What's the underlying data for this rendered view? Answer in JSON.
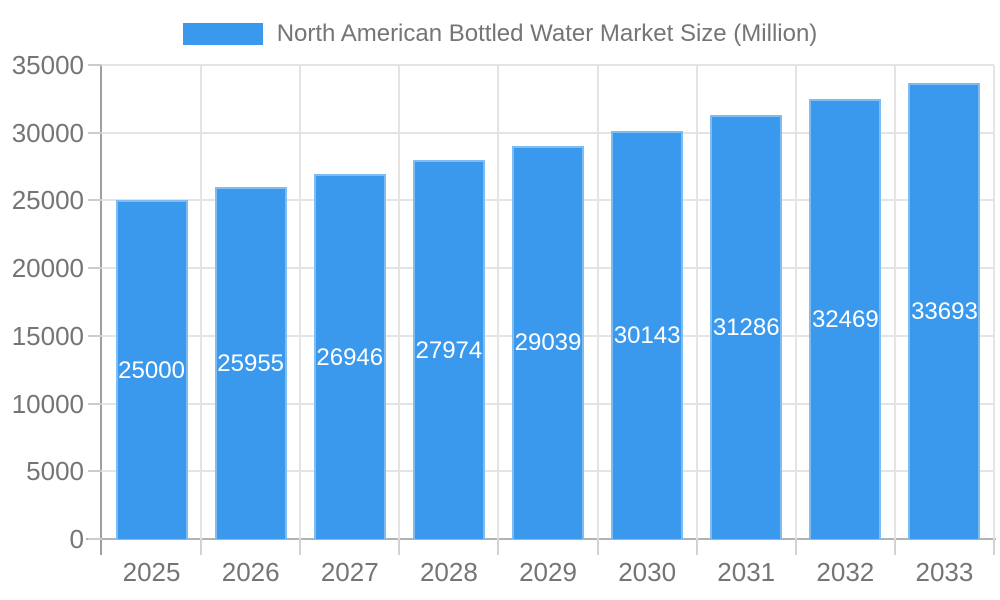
{
  "legend": {
    "items": [
      {
        "label": "North American Bottled Water Market Size (Million)",
        "color": "#3a99ec"
      }
    ],
    "position": "top"
  },
  "chart_data": {
    "type": "bar",
    "title": "North American Bottled Water Market Size (Million)",
    "categories": [
      "2025",
      "2026",
      "2027",
      "2028",
      "2029",
      "2030",
      "2031",
      "2032",
      "2033"
    ],
    "series": [
      {
        "name": "North American Bottled Water Market Size (Million)",
        "values": [
          25000,
          25955,
          26946,
          27974,
          29039,
          30143,
          31286,
          32469,
          33693
        ]
      }
    ],
    "bar_value_labels": [
      "25000",
      "25955",
      "26946",
      "27974",
      "29039",
      "30143",
      "31286",
      "32469",
      "33693"
    ],
    "xlabel": "",
    "ylabel": "",
    "ylim": [
      0,
      35000
    ],
    "ytick_step": 5000,
    "ytick_labels": [
      "35000",
      "30000",
      "25000",
      "20000",
      "15000",
      "10000",
      "5000",
      "0"
    ],
    "grid": true,
    "legend_position": "top",
    "colors": {
      "bar": "#3a99ec",
      "bar_edge": "rgba(255,255,255,0.35)",
      "axis_text": "#757575",
      "value_label_text": "#ffffff",
      "gridline": "#e4e4e4",
      "axis_line": "#a8a8a8"
    }
  }
}
